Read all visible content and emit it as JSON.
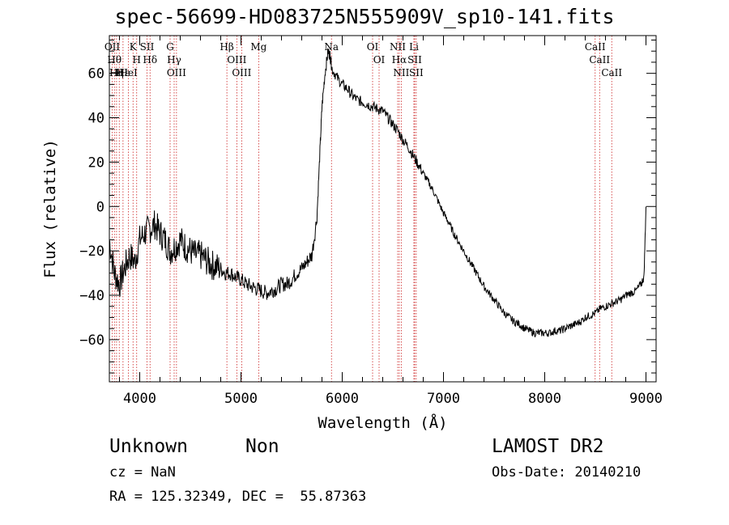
{
  "chart_data": {
    "type": "line",
    "title": "spec-56699-HD083725N555909V_sp10-141.fits",
    "xlabel": "Wavelength (Å)",
    "ylabel": "Flux (relative)",
    "xlim": [
      3700,
      9100
    ],
    "ylim": [
      -79,
      77
    ],
    "xticks": [
      4000,
      5000,
      6000,
      7000,
      8000,
      9000
    ],
    "yticks": [
      -60,
      -40,
      -20,
      0,
      20,
      40,
      60
    ],
    "grid": false,
    "series": [
      {
        "x": [
          3700,
          3750,
          3800,
          3850,
          3900,
          3950,
          4000,
          4050,
          4100,
          4150,
          4200,
          4250,
          4300,
          4350,
          4400,
          4450,
          4500,
          4550,
          4600,
          4650,
          4700,
          4750,
          4800,
          4850,
          4900,
          4950,
          5000,
          5050,
          5100,
          5150,
          5200,
          5250,
          5300,
          5350,
          5400,
          5450,
          5500,
          5550,
          5600,
          5650,
          5700,
          5750,
          5780,
          5800,
          5830,
          5860,
          5880,
          5900,
          5950,
          6000,
          6050,
          6100,
          6150,
          6200,
          6250,
          6300,
          6350,
          6400,
          6450,
          6500,
          6550,
          6600,
          6650,
          6700,
          6750,
          6800,
          6850,
          6900,
          6950,
          7000,
          7050,
          7100,
          7150,
          7200,
          7250,
          7300,
          7350,
          7400,
          7450,
          7500,
          7550,
          7600,
          7650,
          7700,
          7750,
          7800,
          7850,
          7900,
          7950,
          8000,
          8050,
          8100,
          8150,
          8200,
          8250,
          8300,
          8350,
          8400,
          8450,
          8500,
          8550,
          8600,
          8650,
          8700,
          8750,
          8800,
          8850,
          8900,
          8950,
          8980,
          9000
        ],
        "y": [
          -15,
          -30,
          -35,
          -28,
          -22,
          -25,
          -15,
          -12,
          -10,
          -8,
          -12,
          -15,
          -20,
          -18,
          -15,
          -18,
          -20,
          -22,
          -22,
          -24,
          -26,
          -27,
          -28,
          -30,
          -30,
          -32,
          -33,
          -35,
          -36,
          -37,
          -38,
          -39,
          -38,
          -37,
          -35,
          -35,
          -33,
          -30,
          -28,
          -25,
          -22,
          -5,
          25,
          45,
          60,
          70,
          68,
          62,
          58,
          55,
          53,
          50,
          48,
          47,
          46,
          45,
          44,
          43,
          40,
          37,
          34,
          30,
          27,
          23,
          19,
          15,
          11,
          7,
          2,
          -3,
          -7,
          -12,
          -16,
          -20,
          -24,
          -28,
          -32,
          -36,
          -39,
          -42,
          -45,
          -48,
          -50,
          -52,
          -53,
          -55,
          -56,
          -57,
          -57,
          -57,
          -57,
          -56,
          -56,
          -55,
          -54,
          -53,
          -52,
          -50,
          -49,
          -48,
          -46,
          -45,
          -44,
          -43,
          -42,
          -40,
          -39,
          -38,
          -35,
          -32,
          0
        ]
      }
    ],
    "lines": [
      {
        "x": 3728,
        "label": "OII"
      },
      {
        "x": 3750,
        "label": "Hθ"
      },
      {
        "x": 3771,
        "label": "Hη"
      },
      {
        "x": 3798,
        "label": "H"
      },
      {
        "x": 3835,
        "label": "Hε"
      },
      {
        "x": 3889,
        "label": "HeI"
      },
      {
        "x": 3934,
        "label": "K"
      },
      {
        "x": 3970,
        "label": "H"
      },
      {
        "x": 4072,
        "label": "SII"
      },
      {
        "x": 4102,
        "label": "Hδ"
      },
      {
        "x": 4300,
        "label": "G"
      },
      {
        "x": 4340,
        "label": "Hγ"
      },
      {
        "x": 4363,
        "label": "OIII"
      },
      {
        "x": 4861,
        "label": "Hβ"
      },
      {
        "x": 4959,
        "label": "OIII"
      },
      {
        "x": 5007,
        "label": "OIII"
      },
      {
        "x": 5175,
        "label": "Mg"
      },
      {
        "x": 5894,
        "label": "Na"
      },
      {
        "x": 6300,
        "label": "OI"
      },
      {
        "x": 6364,
        "label": "OI"
      },
      {
        "x": 6548,
        "label": "NII"
      },
      {
        "x": 6563,
        "label": "Hα"
      },
      {
        "x": 6583,
        "label": "NII"
      },
      {
        "x": 6708,
        "label": "Li"
      },
      {
        "x": 6716,
        "label": "SII"
      },
      {
        "x": 6731,
        "label": "SII"
      },
      {
        "x": 8498,
        "label": "CaII"
      },
      {
        "x": 8542,
        "label": "CaII"
      },
      {
        "x": 8662,
        "label": "CaII"
      }
    ]
  },
  "footer": {
    "object_class": "Unknown",
    "subclass": "Non",
    "redshift": "cz = NaN",
    "coordinates": "RA = 125.32349, DEC =  55.87363",
    "survey": "LAMOST DR2",
    "obs_date": "Obs-Date: 20140210"
  },
  "colors": {
    "spectrum": "#000000",
    "line_markers": "#cc2222",
    "axes": "#000000"
  }
}
